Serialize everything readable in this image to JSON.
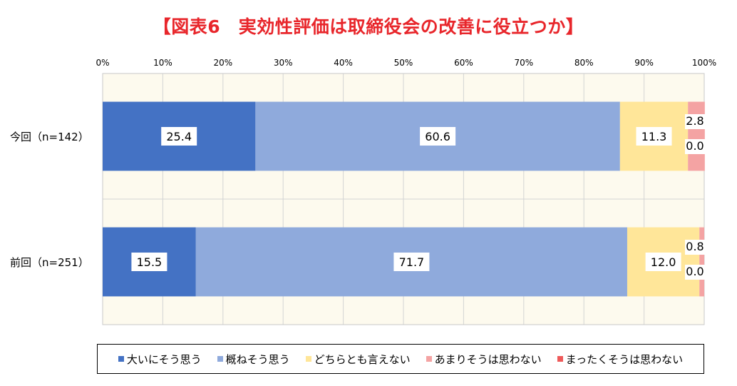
{
  "chart_data": {
    "type": "bar",
    "orientation": "horizontal",
    "stacked": true,
    "percent_stacked": true,
    "title": "【図表6　実効性評価は取締役会の改善に役立つか】",
    "categories": [
      "今回（n=142）",
      "前回（n=251）"
    ],
    "series": [
      {
        "name": "大いにそう思う",
        "color": "#4472c4",
        "values": [
          25.4,
          15.5
        ]
      },
      {
        "name": "概ねそう思う",
        "color": "#8faadc",
        "values": [
          60.6,
          71.7
        ]
      },
      {
        "name": "どちらとも言えない",
        "color": "#ffe699",
        "values": [
          11.3,
          12.0
        ]
      },
      {
        "name": "あまりそうは思わない",
        "color": "#f4a3a3",
        "values": [
          2.8,
          0.8
        ]
      },
      {
        "name": "まったくそうは思わない",
        "color": "#ee5a5a",
        "values": [
          0.0,
          0.0
        ]
      }
    ],
    "data_labels": [
      [
        "25.4",
        "60.6",
        "11.3",
        "2.8",
        "0.0"
      ],
      [
        "15.5",
        "71.7",
        "12.0",
        "0.8",
        "0.0"
      ]
    ],
    "xlim": [
      0,
      100
    ],
    "xticks": [
      "0%",
      "10%",
      "20%",
      "30%",
      "40%",
      "50%",
      "60%",
      "70%",
      "80%",
      "90%",
      "100%"
    ],
    "grid": true,
    "plot_background": "#fdfaee",
    "legend_position": "bottom"
  }
}
